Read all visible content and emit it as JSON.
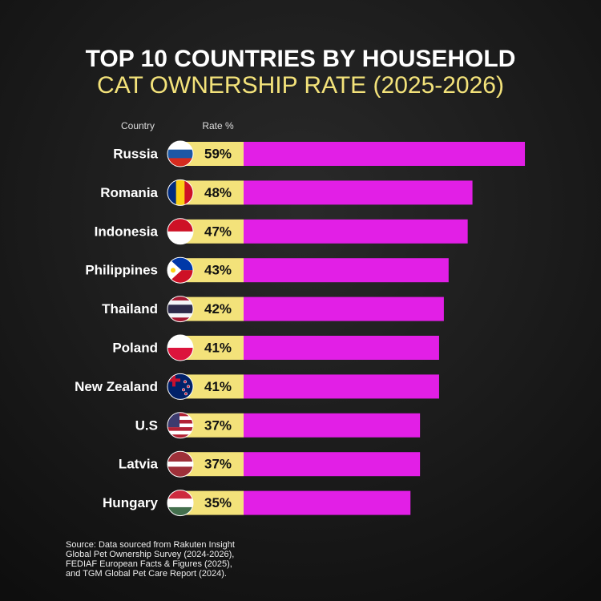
{
  "chart_data": {
    "type": "hbar",
    "title": "TOP 10 COUNTRIES BY HOUSEHOLD",
    "subtitle": "CAT OWNERSHIP RATE (2025-2026)",
    "category_header": "Country",
    "value_header": "Rate %",
    "categories": [
      "Russia",
      "Romania",
      "Indonesia",
      "Philippines",
      "Thailand",
      "Poland",
      "New Zealand",
      "U.S",
      "Latvia",
      "Hungary"
    ],
    "values": [
      59,
      48,
      47,
      43,
      42,
      41,
      41,
      37,
      37,
      35
    ],
    "value_labels": [
      "59%",
      "48%",
      "47%",
      "43%",
      "42%",
      "41%",
      "41%",
      "37%",
      "37%",
      "35%"
    ],
    "color": "#e21fe6",
    "label_box_color": "#f3e27a",
    "source": [
      "Source: Data sourced from Rakuten Insight",
      "Global Pet Ownership Survey (2024-2026),",
      "FEDIAF European Facts & Figures (2025),",
      "and TGM Global Pet Care Report (2024)."
    ]
  }
}
